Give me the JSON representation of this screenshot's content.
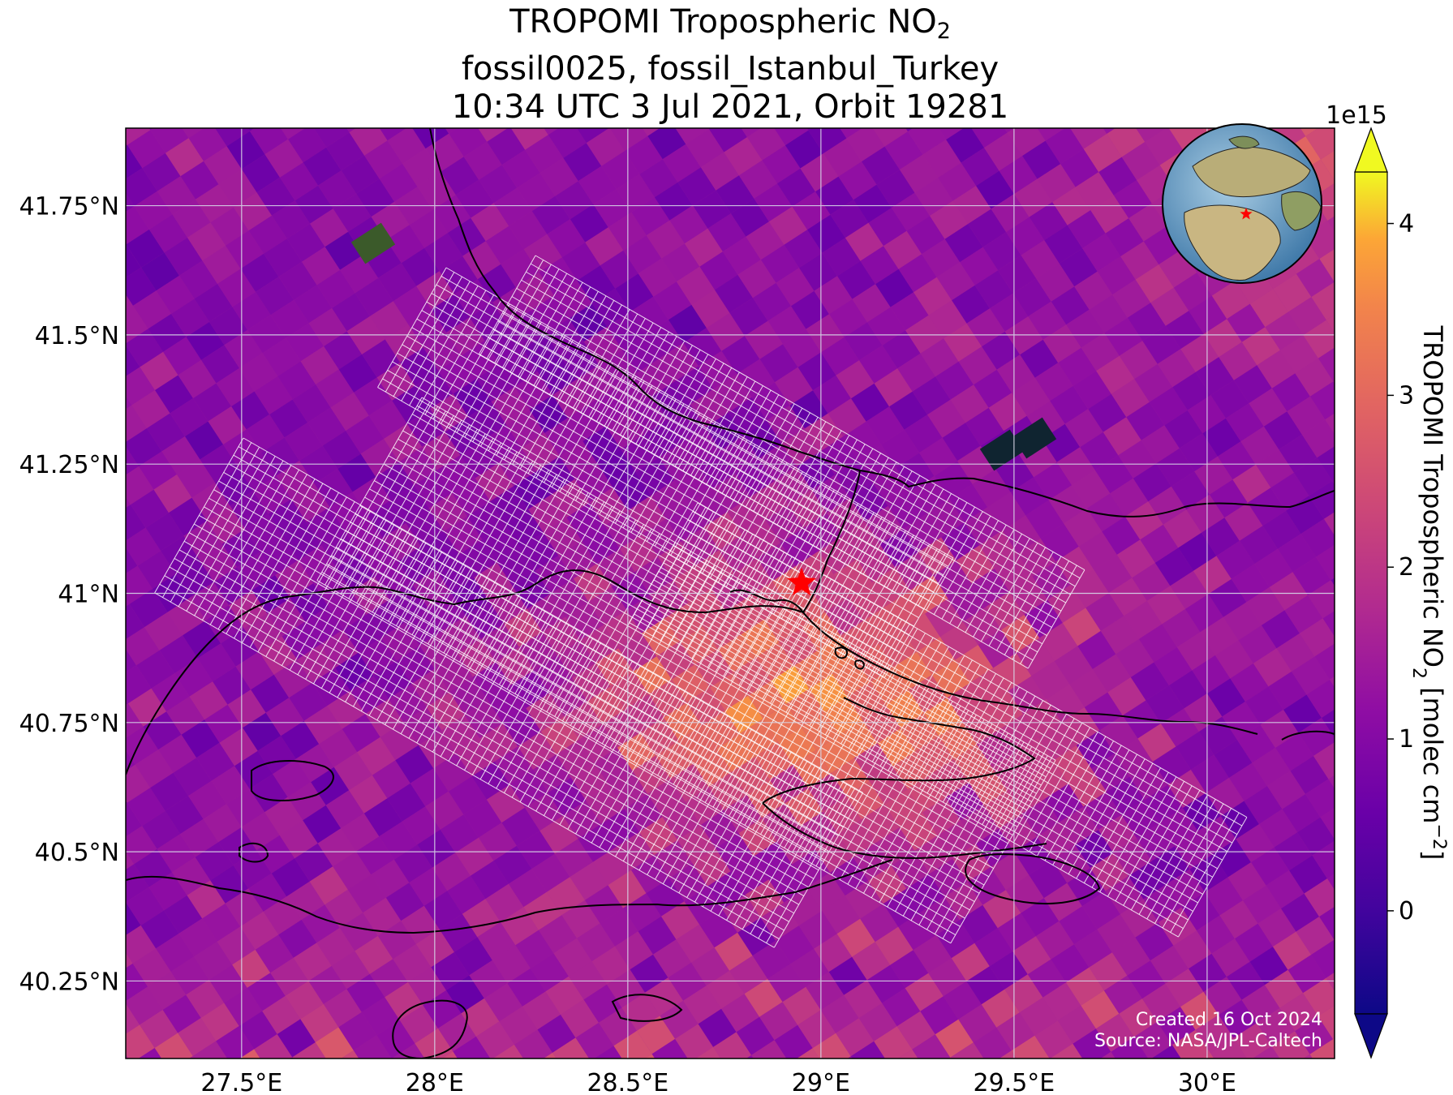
{
  "title": {
    "line1_prefix": "TROPOMI Tropospheric NO",
    "line1_sub": "2",
    "line2": "fossil0025, fossil_Istanbul_Turkey",
    "line3": "10:34 UTC 3 Jul 2021, Orbit 19281"
  },
  "map": {
    "lon_range": [
      27.2,
      30.33
    ],
    "lat_range": [
      40.1,
      41.9
    ],
    "lon_ticks": [
      {
        "value": 27.5,
        "label": "27.5°E"
      },
      {
        "value": 28.0,
        "label": "28°E"
      },
      {
        "value": 28.5,
        "label": "28.5°E"
      },
      {
        "value": 29.0,
        "label": "29°E"
      },
      {
        "value": 29.5,
        "label": "29.5°E"
      },
      {
        "value": 30.0,
        "label": "30°E"
      }
    ],
    "lat_ticks": [
      {
        "value": 41.75,
        "label": "41.75°N"
      },
      {
        "value": 41.5,
        "label": "41.5°N"
      },
      {
        "value": 41.25,
        "label": "41.25°N"
      },
      {
        "value": 41.0,
        "label": "41°N"
      },
      {
        "value": 40.75,
        "label": "40.75°N"
      },
      {
        "value": 40.5,
        "label": "40.5°N"
      },
      {
        "value": 40.25,
        "label": "40.25°N"
      }
    ],
    "gridlines": true,
    "target_marker": {
      "lon": 28.95,
      "lat": 41.02,
      "symbol": "star",
      "color": "#ff0000"
    },
    "inset_globe": {
      "position": "top-right",
      "marker_color": "#ff0000"
    },
    "credit_line1": "Created 16 Oct 2024",
    "credit_line2": "Source: NASA/JPL-Caltech"
  },
  "colorbar": {
    "colormap": "plasma",
    "range": [
      -0.6,
      4.3
    ],
    "ticks": [
      {
        "value": 0,
        "label": "0"
      },
      {
        "value": 1,
        "label": "1"
      },
      {
        "value": 2,
        "label": "2"
      },
      {
        "value": 3,
        "label": "3"
      },
      {
        "value": 4,
        "label": "4"
      }
    ],
    "multiplier": "1e15",
    "label_prefix": "TROPOMI Tropospheric NO",
    "label_sub": "2",
    "label_unit_prefix": " [molec cm",
    "label_sup": "−2",
    "label_suffix": "]",
    "extend": "both"
  }
}
